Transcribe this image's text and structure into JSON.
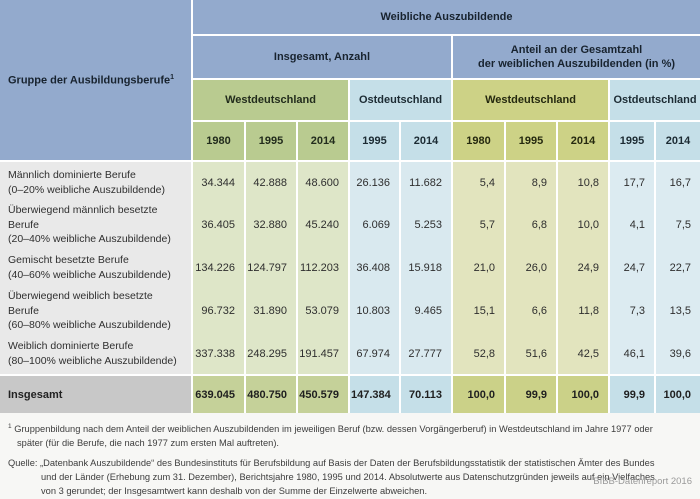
{
  "header": {
    "left_title": "Gruppe der Ausbildungsberufe",
    "left_title_sup": "1",
    "top_title": "Weibliche Auszubildende",
    "group_count": "Insgesamt, Anzahl",
    "group_share_line1": "Anteil an der Gesamtzahl",
    "group_share_line2": "der weiblichen Auszubildenden (in %)",
    "west": "Westdeutschland",
    "east": "Ostdeutschland",
    "years_west": [
      "1980",
      "1995",
      "2014"
    ],
    "years_east": [
      "1995",
      "2014"
    ]
  },
  "rows": [
    {
      "label": "Männlich dominierte Berufe",
      "sublabel": "(0–20% weibliche Auszubildende)",
      "values": [
        "34.344",
        "42.888",
        "48.600",
        "26.136",
        "11.682",
        "5,4",
        "8,9",
        "10,8",
        "17,7",
        "16,7"
      ]
    },
    {
      "label": "Überwiegend männlich besetzte Berufe",
      "sublabel": "(20–40% weibliche Auszubildende)",
      "values": [
        "36.405",
        "32.880",
        "45.240",
        "6.069",
        "5.253",
        "5,7",
        "6,8",
        "10,0",
        "4,1",
        "7,5"
      ]
    },
    {
      "label": "Gemischt besetzte Berufe",
      "sublabel": "(40–60% weibliche Auszubildende)",
      "values": [
        "134.226",
        "124.797",
        "112.203",
        "36.408",
        "15.918",
        "21,0",
        "26,0",
        "24,9",
        "24,7",
        "22,7"
      ]
    },
    {
      "label": "Überwiegend weiblich besetzte Berufe",
      "sublabel": "(60–80% weibliche Auszubildende)",
      "values": [
        "96.732",
        "31.890",
        "53.079",
        "10.803",
        "9.465",
        "15,1",
        "6,6",
        "11,8",
        "7,3",
        "13,5"
      ]
    },
    {
      "label": "Weiblich dominierte Berufe",
      "sublabel": "(80–100% weibliche Auszubildende)",
      "values": [
        "337.338",
        "248.295",
        "191.457",
        "67.974",
        "27.777",
        "52,8",
        "51,6",
        "42,5",
        "46,1",
        "39,6"
      ]
    }
  ],
  "total": {
    "label": "Insgesamt",
    "values": [
      "639.045",
      "480.750",
      "450.579",
      "147.384",
      "70.113",
      "100,0",
      "99,9",
      "100,0",
      "99,9",
      "100,0"
    ]
  },
  "footnotes": {
    "fn1_sup": "1",
    "fn1_text": " Gruppenbildung nach dem Anteil der weiblichen Auszubildenden im jeweiligen Beruf (bzw. dessen Vorgängerberuf) in Westdeutschland im Jahre 1977 oder später (für die Berufe, die nach 1977 zum ersten Mal auftreten).",
    "source_label": "Quelle:",
    "source_text": " „Datenbank Auszubildende“ des Bundesinstituts für Berufsbildung auf Basis der Daten der Berufsbildungsstatistik der statistischen Ämter des Bundes und der Länder (Erhebung zum 31. Dezember), Berichtsjahre 1980, 1995 und 2014. Absolutwerte aus Datenschutzgründen jeweils auf ein Vielfaches von 3 gerundet; der Insgesamtwert kann deshalb von der Summe der Einzelwerte abweichen.",
    "credit": "BIBB-Datenreport 2016"
  },
  "colors": {
    "header_blue": "#93aacd",
    "header_green": "#b9cb90",
    "header_light_blue": "#c5dfe8",
    "header_olive": "#cdd286",
    "body_green": "#dee6c8",
    "body_blue": "#d9e9ef",
    "body_olive": "#e2e4be",
    "label_gray": "#e9e9e9",
    "total_label_gray": "#c8c8c8",
    "credit_gray": "#9a9a9a"
  }
}
